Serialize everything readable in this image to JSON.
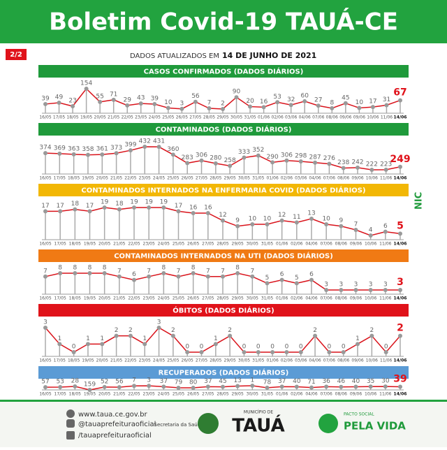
{
  "header": {
    "title": "Boletim Covid-19 TAUÁ-CE",
    "badge": "2/2",
    "updated_prefix": "DADOS ATUALIZADOS EM",
    "updated_date": "14 DE JUNHO DE 2021",
    "side_mark": "NIC"
  },
  "chart_data": [
    {
      "type": "line",
      "title": "CASOS CONFIRMADOS  (DADOS DIÁRIOS)",
      "color": "#1f9a3b",
      "categories": [
        "16/05",
        "17/05",
        "18/05",
        "19/05",
        "20/05",
        "21/05",
        "22/05",
        "23/05",
        "24/05",
        "25/05",
        "26/05",
        "27/05",
        "28/05",
        "29/05",
        "30/05",
        "31/05",
        "01/06",
        "02/06",
        "03/06",
        "04/06",
        "07/06",
        "08/06",
        "09/06",
        "09/06",
        "10/06",
        "11/06",
        "14/06"
      ],
      "values": [
        39,
        49,
        23,
        154,
        55,
        71,
        29,
        43,
        39,
        10,
        3,
        56,
        7,
        2,
        90,
        20,
        16,
        53,
        32,
        60,
        27,
        8,
        45,
        10,
        17,
        31,
        67
      ]
    },
    {
      "type": "line",
      "title": "CONTAMINADOS  (DADOS DIÁRIOS)",
      "color": "#1f9a3b",
      "categories": [
        "16/05",
        "17/05",
        "18/05",
        "19/05",
        "20/05",
        "21/05",
        "22/05",
        "23/05",
        "24/05",
        "25/05",
        "26/05",
        "27/05",
        "28/05",
        "29/05",
        "30/05",
        "31/05",
        "01/06",
        "02/06",
        "03/06",
        "04/06",
        "07/06",
        "08/06",
        "09/06",
        "10/06",
        "11/06",
        "14/06"
      ],
      "values": [
        374,
        369,
        363,
        358,
        361,
        373,
        399,
        432,
        431,
        360,
        283,
        306,
        280,
        258,
        333,
        352,
        290,
        306,
        298,
        287,
        276,
        238,
        242,
        222,
        223,
        249
      ]
    },
    {
      "type": "line",
      "title": "CONTAMINADOS INTERNADOS NA ENFERMARIA COVID  (DADOS DIÁRIOS)",
      "color": "#f2b705",
      "categories": [
        "16/05",
        "17/05",
        "18/05",
        "19/05",
        "20/05",
        "21/05",
        "22/05",
        "23/05",
        "24/05",
        "25/05",
        "26/05",
        "27/05",
        "28/05",
        "29/05",
        "30/05",
        "31/05",
        "01/06",
        "02/06",
        "04/06",
        "07/06",
        "08/06",
        "09/06",
        "10/06",
        "11/06",
        "14/06"
      ],
      "values": [
        17,
        17,
        18,
        17,
        19,
        18,
        19,
        19,
        19,
        17,
        16,
        16,
        12,
        9,
        10,
        10,
        12,
        11,
        13,
        10,
        9,
        7,
        4,
        6,
        5
      ]
    },
    {
      "type": "line",
      "title": "CONTAMINADOS INTERNADOS NA UTI  (DADOS DIÁRIOS)",
      "color": "#f07a14",
      "categories": [
        "16/05",
        "17/05",
        "18/05",
        "19/05",
        "20/05",
        "21/05",
        "22/05",
        "23/05",
        "24/05",
        "25/05",
        "26/05",
        "27/05",
        "28/05",
        "29/05",
        "30/05",
        "31/05",
        "01/06",
        "02/06",
        "04/06",
        "07/06",
        "08/06",
        "09/06",
        "10/06",
        "11/06",
        "14/06"
      ],
      "values": [
        7,
        8,
        8,
        8,
        8,
        7,
        6,
        7,
        8,
        7,
        8,
        7,
        7,
        8,
        7,
        5,
        6,
        5,
        6,
        3,
        3,
        3,
        3,
        3,
        3
      ]
    },
    {
      "type": "line",
      "title": "ÓBITOS  (DADOS DIÁRIOS)",
      "color": "#e0121a",
      "categories": [
        "16/05",
        "17/05",
        "18/05",
        "19/05",
        "20/05",
        "21/05",
        "22/05",
        "23/05",
        "24/05",
        "25/05",
        "26/05",
        "27/05",
        "28/05",
        "29/05",
        "30/05",
        "31/05",
        "01/06",
        "02/06",
        "03/06",
        "04/06",
        "07/06",
        "08/06",
        "09/06",
        "10/06",
        "11/06",
        "14/06"
      ],
      "values": [
        3,
        1,
        0,
        1,
        1,
        2,
        2,
        1,
        3,
        2,
        0,
        0,
        1,
        2,
        0,
        0,
        0,
        0,
        0,
        2,
        0,
        0,
        1,
        2,
        0,
        2
      ]
    },
    {
      "type": "line",
      "title": "RECUPERADOS  (DADOS DIÁRIOS)",
      "color": "#5b9bd5",
      "categories": [
        "16/05",
        "17/05",
        "18/05",
        "19/05",
        "20/05",
        "21/05",
        "22/05",
        "23/05",
        "24/05",
        "25/05",
        "26/05",
        "27/05",
        "28/05",
        "29/05",
        "30/05",
        "31/05",
        "01/06",
        "02/06",
        "04/06",
        "07/06",
        "08/06",
        "09/06",
        "10/06",
        "11/06",
        "14/06"
      ],
      "values": [
        57,
        53,
        28,
        159,
        52,
        56,
        7,
        3,
        37,
        79,
        80,
        37,
        45,
        13,
        1,
        78,
        37,
        40,
        71,
        36,
        46,
        40,
        35,
        30,
        39
      ]
    }
  ],
  "footer": {
    "site": "www.taua.ce.gov.br",
    "instagram": "@tauaprefeituraoficial",
    "facebook": "/tauaprefeituraoficial",
    "secretaria": "Secretaria da Saúde",
    "municipio": "MUNICÍPIO DE",
    "city": "TAUÁ",
    "pacto": "PACTO SOCIAL",
    "pela_vida": "PELA VIDA"
  }
}
